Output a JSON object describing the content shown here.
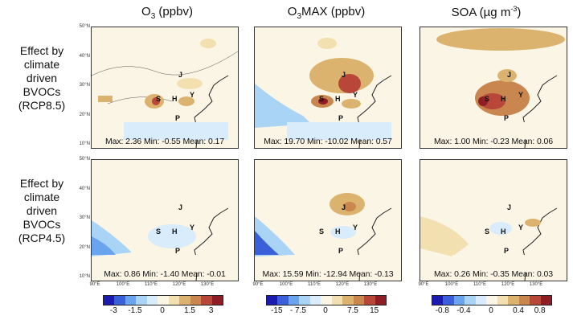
{
  "columns": [
    {
      "title": "O",
      "sub": "3",
      "unit": " (ppbv)"
    },
    {
      "title": "O",
      "sub": "3",
      "after_sub": "MAX",
      "unit": " (ppbv)"
    },
    {
      "title": "SOA (µg m",
      "sup": "-3",
      "close": ")"
    }
  ],
  "rows": [
    {
      "label_lines": [
        "Effect by",
        "climate",
        "driven",
        "BVOCs",
        "(RCP8.5)"
      ]
    },
    {
      "label_lines": [
        "Effect by",
        "climate",
        "driven",
        "BVOCs",
        "(RCP4.5)"
      ]
    }
  ],
  "panels": [
    {
      "stats": "Max: 2.36  Min: -0.55  Mean: 0.17"
    },
    {
      "stats": "Max: 19.70  Min: -10.02  Mean: 0.57"
    },
    {
      "stats": "Max: 1.00  Min: -0.23  Mean: 0.06"
    },
    {
      "stats": "Max: 0.86  Min: -1.40  Mean: -0.01"
    },
    {
      "stats": "Max: 15.59  Min: -12.94  Mean: -0.13"
    },
    {
      "stats": "Max: 0.26  Min: -0.35  Mean: 0.03"
    }
  ],
  "cities": {
    "J": "J",
    "S": "S",
    "H": "H",
    "Y": "Y",
    "P": "P"
  },
  "lat_labels": [
    "50°N",
    "40°N",
    "30°N",
    "20°N",
    "10°N"
  ],
  "lon_labels": [
    "90°E",
    "100°E",
    "110°E",
    "120°E",
    "130°E"
  ],
  "colorbars": [
    {
      "ticks": [
        "-3",
        "-1.5",
        "0",
        "1.5",
        "3"
      ]
    },
    {
      "ticks": [
        "-15",
        "- 7.5",
        "0",
        "7.5",
        "15"
      ]
    },
    {
      "ticks": [
        "-0.8",
        "-0.4",
        "0",
        "0.4",
        "0.8"
      ]
    }
  ],
  "colors": {
    "palette": [
      "#1b1bb0",
      "#3a5fd9",
      "#6aa4ee",
      "#a9d4f6",
      "#d8ecfb",
      "#fbf5e6",
      "#f3e0b0",
      "#dcb36e",
      "#c9864f",
      "#b8473a",
      "#8e1d25"
    ]
  }
}
